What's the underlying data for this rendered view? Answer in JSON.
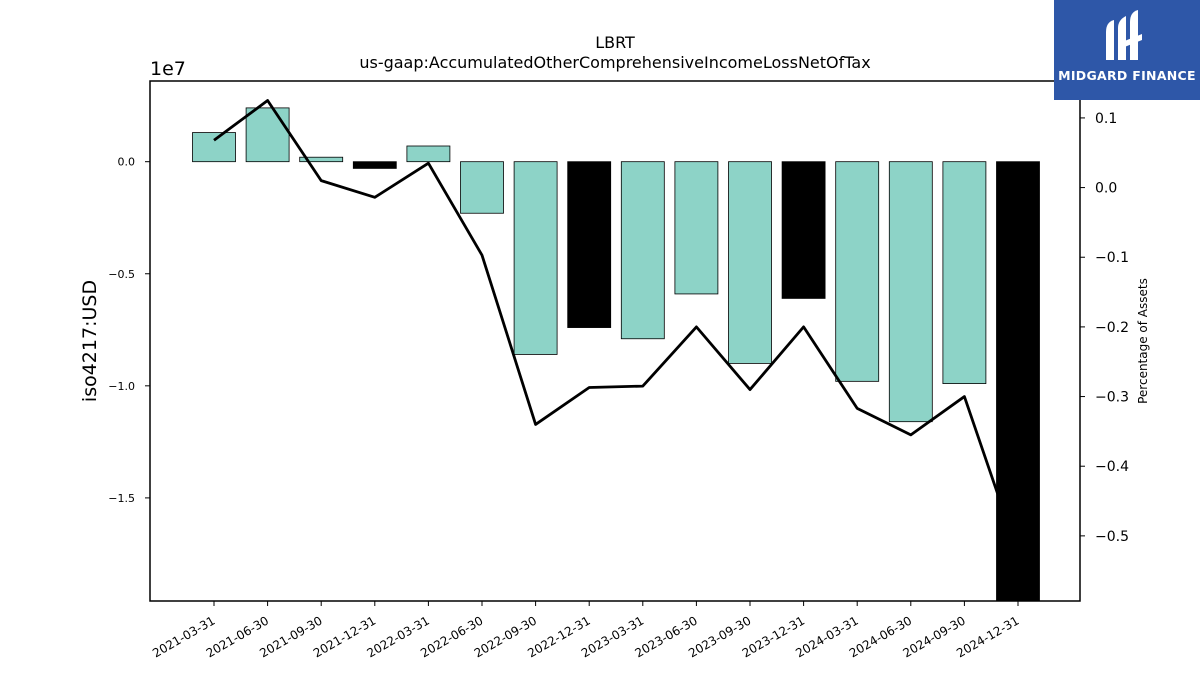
{
  "chart_data": {
    "type": "bar",
    "title": "LBRT",
    "subtitle": "us-gaap:AccumulatedOtherComprehensiveIncomeLossNetOfTax",
    "ylabel": "iso4217:USD",
    "y2label": "Percentage of Assets",
    "y_scale_label": "1e7",
    "categories": [
      "2021-03-31",
      "2021-06-30",
      "2021-09-30",
      "2021-12-31",
      "2022-03-31",
      "2022-06-30",
      "2022-09-30",
      "2022-12-31",
      "2023-03-31",
      "2023-06-30",
      "2023-09-30",
      "2023-12-31",
      "2024-03-31",
      "2024-06-30",
      "2024-09-30",
      "2024-12-31"
    ],
    "values": [
      1300000,
      2400000,
      200000,
      -300000,
      700000,
      -2300000,
      -8600000,
      -7400000,
      -7900000,
      -5900000,
      -9000000,
      -6100000,
      -9800000,
      -11600000,
      -9900000,
      -19600000
    ],
    "bar_colors": [
      "#8dd3c7",
      "#8dd3c7",
      "#8dd3c7",
      "#000000",
      "#8dd3c7",
      "#8dd3c7",
      "#8dd3c7",
      "#000000",
      "#8dd3c7",
      "#8dd3c7",
      "#8dd3c7",
      "#000000",
      "#8dd3c7",
      "#8dd3c7",
      "#8dd3c7",
      "#000000"
    ],
    "pct_of_assets": [
      0.068,
      0.125,
      0.01,
      -0.014,
      0.035,
      -0.097,
      -0.34,
      -0.287,
      -0.285,
      -0.2,
      -0.29,
      -0.2,
      -0.317,
      -0.355,
      -0.3,
      -0.525
    ],
    "ylim": [
      -19600000,
      3600000
    ],
    "y2lim": [
      -0.5935,
      0.153
    ],
    "yticks": [
      0,
      -5000000,
      -10000000,
      -15000000
    ],
    "ytick_labels": [
      "0.0",
      "−0.5",
      "−1.0",
      "−1.5"
    ],
    "y2ticks": [
      0.1,
      0.0,
      -0.1,
      -0.2,
      -0.3,
      -0.4,
      -0.5
    ],
    "y2tick_labels": [
      "0.1",
      "0.0",
      "−0.1",
      "−0.2",
      "−0.3",
      "−0.4",
      "−0.5"
    ],
    "grid": false,
    "line_color": "#000000"
  },
  "logo": {
    "text": "MIDGARD FINANCE",
    "color": "#2e57a8"
  }
}
